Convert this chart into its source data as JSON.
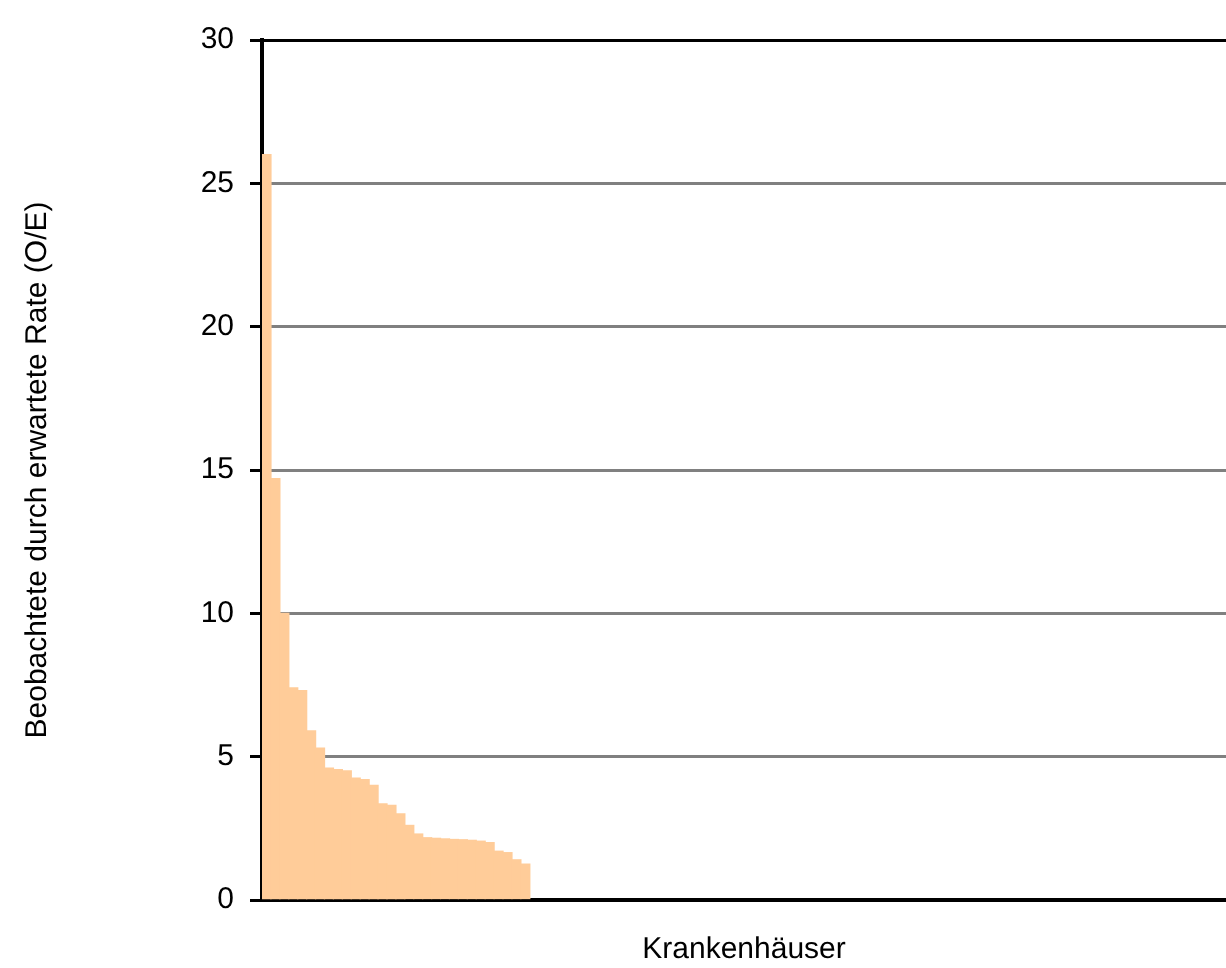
{
  "chart_data": {
    "type": "bar",
    "xlabel": "Krankenhäuser",
    "ylabel": "Beobachtete durch erwartete Rate (O/E)",
    "categories": [
      null,
      null,
      null,
      null,
      null,
      null,
      null,
      null,
      null,
      null,
      null,
      null,
      null,
      null,
      null,
      null,
      null,
      null,
      null,
      null,
      null,
      null,
      null,
      null,
      null,
      null,
      null,
      null,
      null,
      null,
      null,
      null,
      null,
      null,
      null,
      null,
      null,
      null,
      null,
      null,
      null,
      null,
      null,
      null,
      null,
      null,
      null,
      null,
      null,
      null,
      null,
      null,
      null,
      null,
      null,
      null,
      null,
      null,
      null,
      null,
      null,
      null,
      null,
      null,
      null,
      null,
      null,
      null,
      null,
      null,
      null,
      null,
      null,
      null,
      null,
      null,
      null,
      null,
      null,
      null,
      null,
      null,
      null,
      null,
      null,
      null,
      null,
      null,
      null,
      null,
      null,
      null,
      null,
      null,
      null,
      null,
      null,
      null,
      null,
      null,
      null,
      null,
      null,
      null,
      null,
      null,
      null,
      null
    ],
    "values": [
      26.0,
      14.7,
      10.0,
      7.4,
      7.3,
      5.9,
      5.3,
      4.6,
      4.55,
      4.5,
      4.25,
      4.2,
      4.0,
      3.35,
      3.3,
      3.0,
      2.6,
      2.3,
      2.17,
      2.15,
      2.13,
      2.11,
      2.1,
      2.08,
      2.05,
      2.0,
      1.7,
      1.65,
      1.4,
      1.25,
      null,
      null,
      null,
      null,
      null,
      null,
      null,
      null,
      null,
      null,
      null,
      null,
      null,
      null,
      null,
      null,
      null,
      null,
      null,
      null,
      null,
      null,
      null,
      null,
      null,
      null,
      null,
      null,
      null,
      null,
      null,
      null,
      null,
      null,
      null,
      null,
      null,
      null,
      null,
      null,
      null,
      null,
      null,
      null,
      null,
      null,
      null,
      null,
      null,
      null,
      null,
      null,
      null,
      null,
      null,
      null,
      null,
      null,
      null,
      null,
      null,
      null,
      null,
      null,
      null,
      null,
      null,
      null,
      null,
      null,
      null,
      null,
      null,
      null,
      null,
      null,
      null,
      null
    ],
    "color": "#ffcc99",
    "ylim": [
      0,
      30
    ],
    "yticks": [
      0,
      5,
      10,
      15,
      20,
      25,
      30
    ],
    "grid": "y",
    "tick_labels": "y"
  }
}
